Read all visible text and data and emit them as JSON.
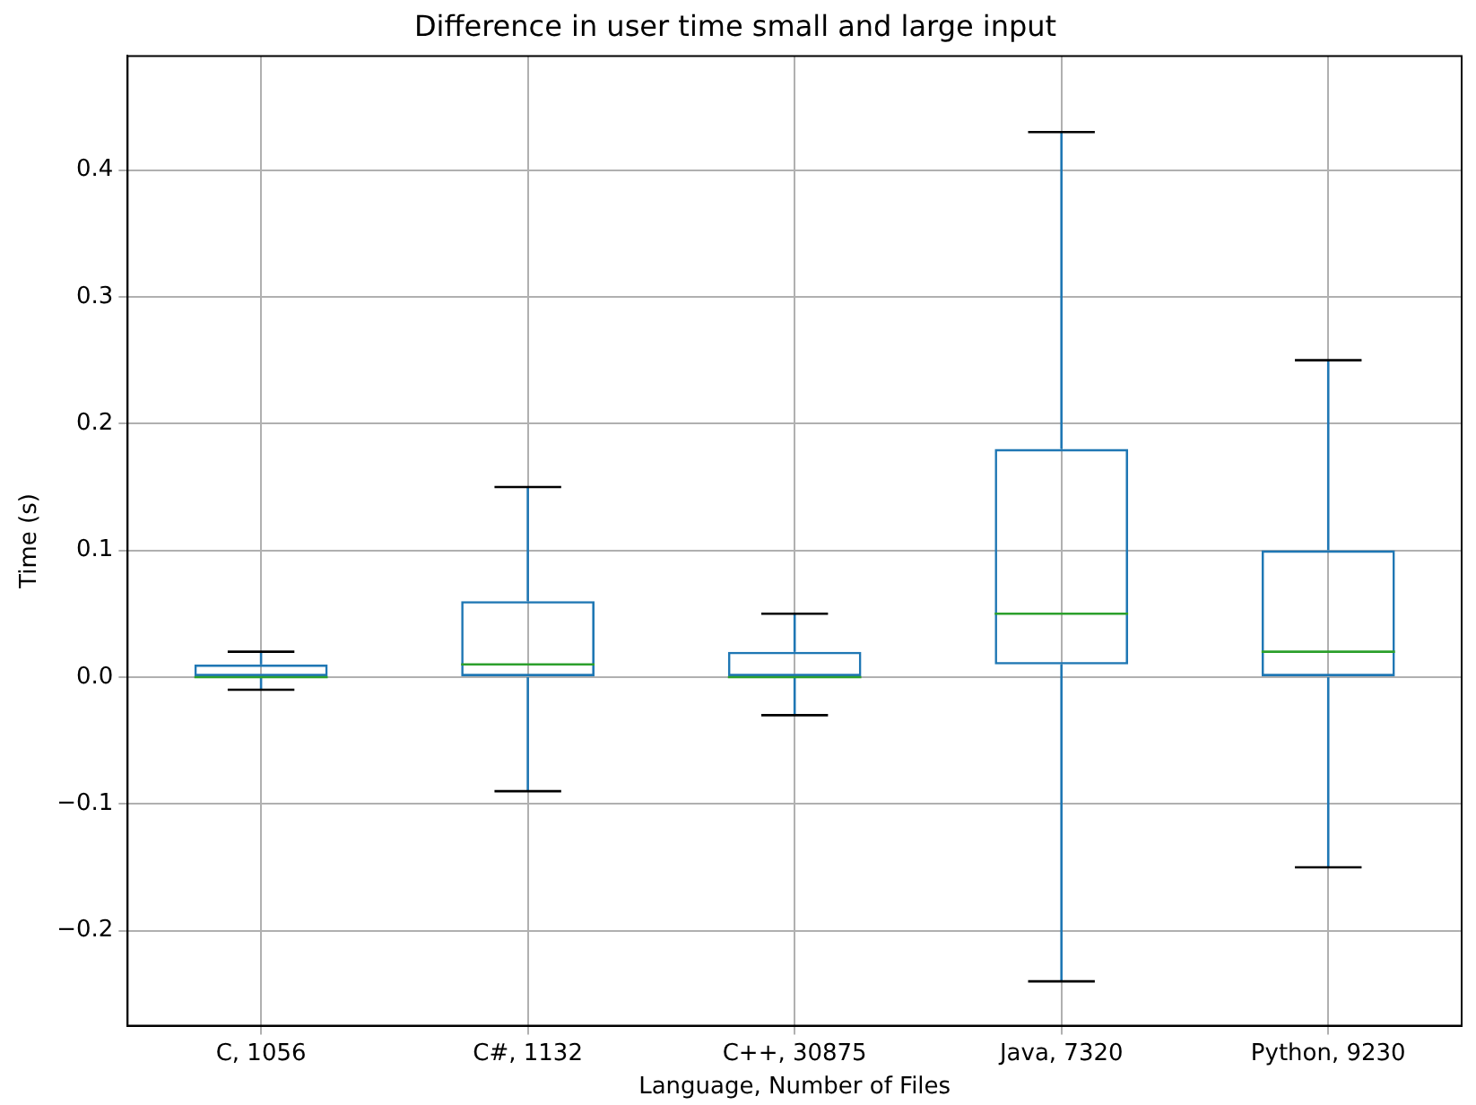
{
  "chart_data": {
    "type": "box",
    "title": "Difference in user time small and large input",
    "xlabel": "Language, Number of Files",
    "ylabel": "Time (s)",
    "categories": [
      "C, 1056",
      "C#, 1132",
      "C++, 30875",
      "Java, 7320",
      "Python, 9230"
    ],
    "series": [
      {
        "color": "#1f77b4",
        "boxes": [
          {
            "low": -0.01,
            "q1": 0,
            "median": 0,
            "q3": 0.01,
            "high": 0.02
          },
          {
            "low": -0.09,
            "q1": 0,
            "median": 0.01,
            "q3": 0.06,
            "high": 0.15
          },
          {
            "low": -0.03,
            "q1": 0,
            "median": 0,
            "q3": 0.02,
            "high": 0.05
          },
          {
            "low": -0.24,
            "q1": 0.01,
            "median": 0.05,
            "q3": 0.18,
            "high": 0.43
          },
          {
            "low": -0.15,
            "q1": 0,
            "median": 0.02,
            "q3": 0.1,
            "high": 0.25
          }
        ]
      }
    ],
    "ylim": [
      -0.275,
      0.49
    ],
    "yticks": [
      {
        "value": -0.2,
        "label": "−0.2"
      },
      {
        "value": -0.1,
        "label": "−0.1"
      },
      {
        "value": 0,
        "label": "0.0"
      },
      0.1,
      0.2,
      0.3,
      0.4
    ],
    "grid": true,
    "legend": false
  }
}
